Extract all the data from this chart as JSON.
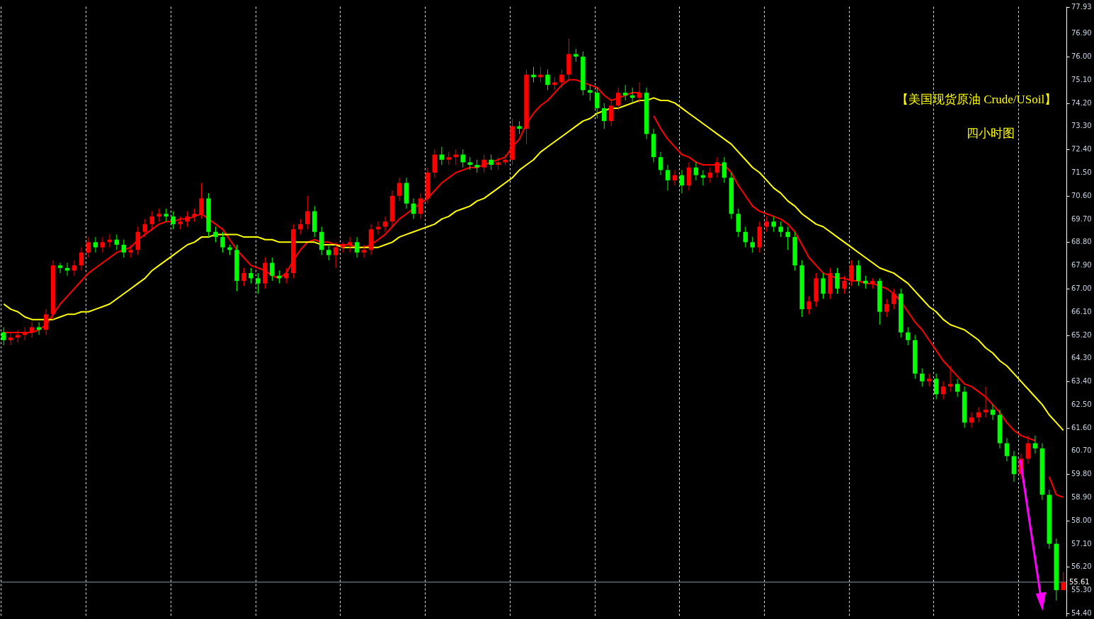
{
  "chart_data": {
    "type": "candlestick",
    "title": "【美国现货原油 Crude/USoil】",
    "subtitle": "四小时图",
    "categories": [
      null,
      null,
      null,
      null,
      null,
      null,
      null,
      null,
      null,
      null,
      null,
      null,
      null,
      null,
      null,
      null,
      null,
      null,
      null,
      null,
      null,
      null,
      null,
      null,
      null,
      null,
      null,
      null,
      null,
      null,
      null,
      null,
      null,
      null,
      null,
      null,
      null,
      null,
      null,
      null,
      null,
      null,
      null,
      null,
      null,
      null,
      null,
      null,
      null,
      null,
      null,
      null,
      null,
      null,
      null,
      null,
      null,
      null,
      null,
      null,
      null,
      null,
      null,
      null,
      null,
      null,
      null,
      null,
      null,
      null,
      null,
      null,
      null,
      null,
      null,
      null,
      null,
      null,
      null,
      null,
      null,
      null,
      null,
      null,
      null,
      null,
      null,
      null,
      null,
      null,
      null,
      null,
      null,
      null,
      null,
      null,
      null,
      null,
      null,
      null,
      null,
      null,
      null,
      null,
      null,
      null,
      null,
      null,
      null,
      null,
      null,
      null,
      null,
      null,
      null,
      null,
      null,
      null,
      null,
      null,
      null,
      null,
      null,
      null,
      null,
      null,
      null,
      null,
      null,
      null,
      null,
      null,
      null,
      null,
      null,
      null,
      null,
      null,
      null,
      null,
      null,
      null,
      null,
      null,
      null,
      null,
      null,
      null,
      null,
      null,
      null
    ],
    "ohlc": [
      [
        65.3,
        65.5,
        64.8,
        65.0
      ],
      [
        65.0,
        65.3,
        64.8,
        65.1
      ],
      [
        65.1,
        65.4,
        64.9,
        65.2
      ],
      [
        65.2,
        65.5,
        65.0,
        65.3
      ],
      [
        65.3,
        65.7,
        65.1,
        65.5
      ],
      [
        65.5,
        65.7,
        65.2,
        65.4
      ],
      [
        65.4,
        66.2,
        65.2,
        66.0
      ],
      [
        66.0,
        68.1,
        65.8,
        67.9
      ],
      [
        67.9,
        68.0,
        67.6,
        67.8
      ],
      [
        67.8,
        68.0,
        67.5,
        67.7
      ],
      [
        67.7,
        68.1,
        67.5,
        67.9
      ],
      [
        67.9,
        68.6,
        67.7,
        68.4
      ],
      [
        68.4,
        69.0,
        68.2,
        68.8
      ],
      [
        68.8,
        69.0,
        68.4,
        68.6
      ],
      [
        68.6,
        69.0,
        68.4,
        68.8
      ],
      [
        68.8,
        69.1,
        68.6,
        68.9
      ],
      [
        68.9,
        69.1,
        68.5,
        68.7
      ],
      [
        68.7,
        68.9,
        68.2,
        68.4
      ],
      [
        68.4,
        68.7,
        68.2,
        68.5
      ],
      [
        68.5,
        69.4,
        68.3,
        69.2
      ],
      [
        69.2,
        69.7,
        69.0,
        69.5
      ],
      [
        69.5,
        70.0,
        69.3,
        69.8
      ],
      [
        69.8,
        70.1,
        69.6,
        69.9
      ],
      [
        69.9,
        70.1,
        69.6,
        69.8
      ],
      [
        69.8,
        70.0,
        69.3,
        69.5
      ],
      [
        69.5,
        69.8,
        69.3,
        69.6
      ],
      [
        69.6,
        70.0,
        69.4,
        69.8
      ],
      [
        69.8,
        70.1,
        69.6,
        69.9
      ],
      [
        69.9,
        71.1,
        69.7,
        70.5
      ],
      [
        70.5,
        70.7,
        69.0,
        69.2
      ],
      [
        69.2,
        69.4,
        68.8,
        69.0
      ],
      [
        69.0,
        69.2,
        68.4,
        68.6
      ],
      [
        68.6,
        68.7,
        68.3,
        68.5
      ],
      [
        68.5,
        68.7,
        66.9,
        67.3
      ],
      [
        67.3,
        67.8,
        67.1,
        67.6
      ],
      [
        67.6,
        67.8,
        67.2,
        67.4
      ],
      [
        67.4,
        67.6,
        66.8,
        67.2
      ],
      [
        67.2,
        68.2,
        67.0,
        68.0
      ],
      [
        68.0,
        68.2,
        67.3,
        67.5
      ],
      [
        67.5,
        67.7,
        67.2,
        67.4
      ],
      [
        67.4,
        67.8,
        67.2,
        67.6
      ],
      [
        67.6,
        69.5,
        67.4,
        69.3
      ],
      [
        69.3,
        69.7,
        69.1,
        69.5
      ],
      [
        69.5,
        70.6,
        69.3,
        70.0
      ],
      [
        70.0,
        70.2,
        69.0,
        69.2
      ],
      [
        69.2,
        69.4,
        68.3,
        68.5
      ],
      [
        68.5,
        68.7,
        68.1,
        68.3
      ],
      [
        68.3,
        68.8,
        67.8,
        68.6
      ],
      [
        68.6,
        68.8,
        68.4,
        68.7
      ],
      [
        68.7,
        69.0,
        68.4,
        68.8
      ],
      [
        68.8,
        69.0,
        68.2,
        68.4
      ],
      [
        68.4,
        68.7,
        68.2,
        68.5
      ],
      [
        68.5,
        69.5,
        68.3,
        69.3
      ],
      [
        69.3,
        69.6,
        69.1,
        69.4
      ],
      [
        69.4,
        69.8,
        69.2,
        69.6
      ],
      [
        69.6,
        70.8,
        69.4,
        70.6
      ],
      [
        70.6,
        71.3,
        70.4,
        71.1
      ],
      [
        71.1,
        71.3,
        70.1,
        70.3
      ],
      [
        70.3,
        70.5,
        69.7,
        69.9
      ],
      [
        69.9,
        70.7,
        69.7,
        70.5
      ],
      [
        70.5,
        71.7,
        70.3,
        71.5
      ],
      [
        71.5,
        72.4,
        71.3,
        72.2
      ],
      [
        72.2,
        72.5,
        71.8,
        72.0
      ],
      [
        72.0,
        72.3,
        71.8,
        72.1
      ],
      [
        72.1,
        72.4,
        71.8,
        72.2
      ],
      [
        72.2,
        72.4,
        71.7,
        71.9
      ],
      [
        71.9,
        72.1,
        71.6,
        71.8
      ],
      [
        71.8,
        72.0,
        71.5,
        71.7
      ],
      [
        71.7,
        72.2,
        71.5,
        72.0
      ],
      [
        72.0,
        72.2,
        71.6,
        71.8
      ],
      [
        71.8,
        72.1,
        71.6,
        71.9
      ],
      [
        71.9,
        72.2,
        71.8,
        72.0
      ],
      [
        72.0,
        73.6,
        71.8,
        73.3
      ],
      [
        73.3,
        73.5,
        73.0,
        73.2
      ],
      [
        73.2,
        75.5,
        72.6,
        75.3
      ],
      [
        75.3,
        75.6,
        75.0,
        75.2
      ],
      [
        75.2,
        75.6,
        75.0,
        75.3
      ],
      [
        75.3,
        75.5,
        74.7,
        74.9
      ],
      [
        74.9,
        75.2,
        74.7,
        75.0
      ],
      [
        75.0,
        75.5,
        74.8,
        75.3
      ],
      [
        75.3,
        76.7,
        75.1,
        76.1
      ],
      [
        76.1,
        76.3,
        75.8,
        76.0
      ],
      [
        76.0,
        76.2,
        74.5,
        74.7
      ],
      [
        74.7,
        74.9,
        74.3,
        74.6
      ],
      [
        74.6,
        74.8,
        73.6,
        74.0
      ],
      [
        74.0,
        74.2,
        73.2,
        73.5
      ],
      [
        73.5,
        74.3,
        73.3,
        74.1
      ],
      [
        74.1,
        74.8,
        73.9,
        74.6
      ],
      [
        74.6,
        74.9,
        74.3,
        74.5
      ],
      [
        74.5,
        74.8,
        74.2,
        74.4
      ],
      [
        74.4,
        75.0,
        74.2,
        74.6
      ],
      [
        74.6,
        74.8,
        72.8,
        73.0
      ],
      [
        73.0,
        73.2,
        71.9,
        72.1
      ],
      [
        72.1,
        72.3,
        71.4,
        71.6
      ],
      [
        71.6,
        71.8,
        70.8,
        71.2
      ],
      [
        71.2,
        71.6,
        71.0,
        71.4
      ],
      [
        71.4,
        71.6,
        70.7,
        71.0
      ],
      [
        71.0,
        71.9,
        70.8,
        71.7
      ],
      [
        71.7,
        71.9,
        71.2,
        71.4
      ],
      [
        71.4,
        71.6,
        71.0,
        71.3
      ],
      [
        71.3,
        71.7,
        71.1,
        71.5
      ],
      [
        71.5,
        72.1,
        71.3,
        71.9
      ],
      [
        71.9,
        72.1,
        71.1,
        71.3
      ],
      [
        71.3,
        71.5,
        69.7,
        69.9
      ],
      [
        69.9,
        70.1,
        69.0,
        69.2
      ],
      [
        69.2,
        69.4,
        68.6,
        68.8
      ],
      [
        68.8,
        69.0,
        68.4,
        68.6
      ],
      [
        68.6,
        69.6,
        68.4,
        69.4
      ],
      [
        69.4,
        69.8,
        69.2,
        69.6
      ],
      [
        69.6,
        69.8,
        69.2,
        69.4
      ],
      [
        69.4,
        69.6,
        69.0,
        69.2
      ],
      [
        69.2,
        69.4,
        68.5,
        69.0
      ],
      [
        69.0,
        69.2,
        67.7,
        67.9
      ],
      [
        67.9,
        68.1,
        65.9,
        66.2
      ],
      [
        66.2,
        66.7,
        66.0,
        66.5
      ],
      [
        66.5,
        67.6,
        66.3,
        67.4
      ],
      [
        67.4,
        67.6,
        66.6,
        66.8
      ],
      [
        66.8,
        67.8,
        66.6,
        67.6
      ],
      [
        67.6,
        67.8,
        66.8,
        67.0
      ],
      [
        67.0,
        67.5,
        66.8,
        67.3
      ],
      [
        67.3,
        68.1,
        67.1,
        67.9
      ],
      [
        67.9,
        68.1,
        67.1,
        67.3
      ],
      [
        67.3,
        67.5,
        67.0,
        67.2
      ],
      [
        67.2,
        67.4,
        67.0,
        67.3
      ],
      [
        67.3,
        67.4,
        65.6,
        66.1
      ],
      [
        66.1,
        66.6,
        65.9,
        66.4
      ],
      [
        66.4,
        67.0,
        66.2,
        66.8
      ],
      [
        66.8,
        67.0,
        65.1,
        65.3
      ],
      [
        65.3,
        65.5,
        64.8,
        65.0
      ],
      [
        65.0,
        65.2,
        63.5,
        63.7
      ],
      [
        63.7,
        63.9,
        63.2,
        63.4
      ],
      [
        63.4,
        63.7,
        63.2,
        63.5
      ],
      [
        63.5,
        63.7,
        62.7,
        62.9
      ],
      [
        62.9,
        63.4,
        62.7,
        63.2
      ],
      [
        63.2,
        64.0,
        63.0,
        63.3
      ],
      [
        63.3,
        63.5,
        62.8,
        63.0
      ],
      [
        63.0,
        63.2,
        61.6,
        61.8
      ],
      [
        61.8,
        62.2,
        61.6,
        62.0
      ],
      [
        62.0,
        62.4,
        61.8,
        62.2
      ],
      [
        62.2,
        63.2,
        62.0,
        62.3
      ],
      [
        62.3,
        62.5,
        61.9,
        62.1
      ],
      [
        62.1,
        62.3,
        60.8,
        61.0
      ],
      [
        61.0,
        61.2,
        60.3,
        60.5
      ],
      [
        60.5,
        60.7,
        59.5,
        59.8
      ],
      [
        59.8,
        60.6,
        59.6,
        60.4
      ],
      [
        60.4,
        61.3,
        60.2,
        61.0
      ],
      [
        61.0,
        61.3,
        60.6,
        60.8
      ],
      [
        60.8,
        61.0,
        58.8,
        59.0
      ],
      [
        59.0,
        59.2,
        56.9,
        57.1
      ],
      [
        57.1,
        57.3,
        54.9,
        55.3
      ],
      [
        55.3,
        56.0,
        55.3,
        55.6
      ]
    ],
    "colors": [
      "#00ff00",
      "#ff0000",
      "#ff0000",
      "#ff0000",
      "#ff0000",
      "#00ff00",
      "#ff0000",
      "#ff0000",
      "#00ff00",
      "#00ff00",
      "#ff0000",
      "#ff0000",
      "#ff0000",
      "#00ff00",
      "#ff0000",
      "#ff0000",
      "#00ff00",
      "#00ff00",
      "#ff0000",
      "#ff0000",
      "#ff0000",
      "#ff0000",
      "#ff0000",
      "#00ff00",
      "#00ff00",
      "#ff0000",
      "#ff0000",
      "#ff0000",
      "#ff0000",
      "#00ff00",
      "#00ff00",
      "#00ff00",
      "#00ff00",
      "#00ff00",
      "#ff0000",
      "#00ff00",
      "#00ff00",
      "#ff0000",
      "#00ff00",
      "#00ff00",
      "#ff0000",
      "#ff0000",
      "#ff0000",
      "#ff0000",
      "#00ff00",
      "#00ff00",
      "#00ff00",
      "#ff0000",
      "#ff0000",
      "#ff0000",
      "#00ff00",
      "#ff0000",
      "#ff0000",
      "#ff0000",
      "#ff0000",
      "#ff0000",
      "#ff0000",
      "#00ff00",
      "#00ff00",
      "#ff0000",
      "#ff0000",
      "#ff0000",
      "#00ff00",
      "#ff0000",
      "#ff0000",
      "#00ff00",
      "#00ff00",
      "#00ff00",
      "#ff0000",
      "#00ff00",
      "#ff0000",
      "#ff0000",
      "#ff0000",
      "#00ff00",
      "#ff0000",
      "#00ff00",
      "#ff0000",
      "#00ff00",
      "#ff0000",
      "#ff0000",
      "#ff0000",
      "#00ff00",
      "#00ff00",
      "#00ff00",
      "#00ff00",
      "#00ff00",
      "#ff0000",
      "#ff0000",
      "#00ff00",
      "#00ff00",
      "#ff0000",
      "#00ff00",
      "#00ff00",
      "#00ff00",
      "#00ff00",
      "#ff0000",
      "#00ff00",
      "#ff0000",
      "#00ff00",
      "#00ff00",
      "#ff0000",
      "#ff0000",
      "#00ff00",
      "#00ff00",
      "#00ff00",
      "#00ff00",
      "#00ff00",
      "#ff0000",
      "#ff0000",
      "#00ff00",
      "#00ff00",
      "#00ff00",
      "#00ff00",
      "#00ff00",
      "#ff0000",
      "#ff0000",
      "#00ff00",
      "#ff0000",
      "#00ff00",
      "#ff0000",
      "#ff0000",
      "#00ff00",
      "#00ff00",
      "#ff0000",
      "#00ff00",
      "#ff0000",
      "#ff0000",
      "#00ff00",
      "#00ff00",
      "#00ff00",
      "#00ff00",
      "#ff0000",
      "#00ff00",
      "#ff0000",
      "#ff0000",
      "#00ff00",
      "#00ff00",
      "#ff0000",
      "#ff0000",
      "#ff0000",
      "#00ff00",
      "#00ff00",
      "#00ff00",
      "#00ff00",
      "#ff0000",
      "#ff0000",
      "#00ff00",
      "#00ff00",
      "#00ff00",
      "#00ff00",
      "#ff0000"
    ],
    "series": [
      {
        "type": "line",
        "color": "#ff0000",
        "values": [
          65.3,
          65.3,
          65.3,
          65.3,
          65.3,
          65.4,
          65.6,
          66.0,
          66.4,
          66.7,
          67.0,
          67.3,
          67.6,
          67.8,
          68.0,
          68.2,
          68.4,
          68.5,
          68.6,
          68.9,
          69.1,
          69.3,
          69.5,
          69.6,
          69.6,
          69.7,
          69.7,
          69.8,
          69.9,
          69.7,
          69.5,
          69.3,
          68.9,
          68.5,
          68.2,
          67.9,
          67.8,
          67.7,
          67.5,
          67.4,
          67.6,
          68.1,
          68.5,
          68.8,
          68.9,
          68.8,
          68.8,
          68.7,
          68.7,
          68.7,
          68.6,
          68.6,
          68.7,
          68.9,
          69.1,
          69.4,
          69.7,
          69.9,
          70.1,
          70.3,
          70.5,
          70.8,
          71.1,
          71.3,
          71.5,
          71.6,
          71.7,
          71.7,
          71.8,
          71.9,
          72.0,
          72.1,
          72.5,
          72.8,
          73.4,
          73.8,
          74.1,
          74.3,
          74.6,
          74.9,
          75.1,
          75.1,
          75.0,
          74.9,
          74.8,
          74.5,
          74.3,
          74.4,
          74.5,
          74.6,
          74.6,
          null,
          73.7,
          73.2,
          72.8,
          72.5,
          72.2,
          72.1,
          71.9,
          71.8,
          71.8,
          71.8,
          71.8,
          71.5,
          71.0,
          70.6,
          70.2,
          70.0,
          69.9,
          69.8,
          69.7,
          69.5,
          69.2,
          68.7,
          68.2,
          67.9,
          67.6,
          67.5,
          67.4,
          67.4,
          67.3,
          67.3,
          67.2,
          67.2,
          67.1,
          67.0,
          66.8,
          66.5,
          66.1,
          65.7,
          65.4,
          65.0,
          64.6,
          64.2,
          63.9,
          63.6,
          63.3,
          63.2,
          63.0,
          62.8,
          62.5,
          62.2,
          61.8,
          61.5,
          61.3,
          61.2,
          61.1,
          null,
          59.7,
          59.0,
          58.9
        ]
      },
      {
        "type": "line",
        "color": "#ffff00",
        "values": [
          66.4,
          66.2,
          66.1,
          65.9,
          65.8,
          65.8,
          65.8,
          65.8,
          65.9,
          66.0,
          66.0,
          66.1,
          66.1,
          66.2,
          66.3,
          66.4,
          66.6,
          66.8,
          67.0,
          67.2,
          67.4,
          67.7,
          67.9,
          68.1,
          68.3,
          68.5,
          68.7,
          68.8,
          69.0,
          69.0,
          69.1,
          69.1,
          69.1,
          69.1,
          69.0,
          69.0,
          69.0,
          68.9,
          68.9,
          68.8,
          68.8,
          68.8,
          68.8,
          68.8,
          68.8,
          68.7,
          68.7,
          68.7,
          68.6,
          68.6,
          68.6,
          68.6,
          68.6,
          68.6,
          68.7,
          68.8,
          69.0,
          69.1,
          69.2,
          69.3,
          69.4,
          69.5,
          69.7,
          69.8,
          70.0,
          70.1,
          70.2,
          70.4,
          70.5,
          70.7,
          70.9,
          71.1,
          71.3,
          71.6,
          71.8,
          72.0,
          72.3,
          72.5,
          72.7,
          72.9,
          73.1,
          73.3,
          73.5,
          73.6,
          73.8,
          73.9,
          74.0,
          74.0,
          74.1,
          74.2,
          74.3,
          74.3,
          74.4,
          74.3,
          74.3,
          74.2,
          74.0,
          73.8,
          73.6,
          73.4,
          73.2,
          73.0,
          72.8,
          72.6,
          72.3,
          72.0,
          71.7,
          71.5,
          71.2,
          70.9,
          70.7,
          70.4,
          70.2,
          69.9,
          69.7,
          69.5,
          69.4,
          69.2,
          69.0,
          68.8,
          68.6,
          68.4,
          68.2,
          68.0,
          67.8,
          67.7,
          67.6,
          67.4,
          67.2,
          66.9,
          66.6,
          66.3,
          66.1,
          65.8,
          65.6,
          65.5,
          65.4,
          65.2,
          65.0,
          64.7,
          64.5,
          64.2,
          64.0,
          63.7,
          63.4,
          63.1,
          62.8,
          62.5,
          62.1,
          61.8,
          61.5
        ]
      }
    ],
    "ylim": [
      54.29,
      77.95
    ],
    "yticks": [
      {
        "value": 54.4,
        "label": "54.40"
      },
      {
        "value": 55.3,
        "label": "55.30"
      },
      {
        "value": 56.2,
        "label": "56.20"
      },
      {
        "value": 57.1,
        "label": "57.10"
      },
      {
        "value": 58.0,
        "label": "58.00"
      },
      {
        "value": 58.9,
        "label": "58.90"
      },
      {
        "value": 59.8,
        "label": "59.80"
      },
      {
        "value": 60.7,
        "label": "60.70"
      },
      {
        "value": 61.6,
        "label": "61.60"
      },
      {
        "value": 62.5,
        "label": "62.50"
      },
      {
        "value": 63.4,
        "label": "63.40"
      },
      {
        "value": 64.3,
        "label": "64.30"
      },
      {
        "value": 65.2,
        "label": "65.20"
      },
      {
        "value": 66.1,
        "label": "66.10"
      },
      {
        "value": 67.0,
        "label": "67.00"
      },
      {
        "value": 67.9,
        "label": "67.90"
      },
      {
        "value": 68.8,
        "label": "68.80"
      },
      {
        "value": 69.7,
        "label": "69.70"
      },
      {
        "value": 70.6,
        "label": "70.60"
      },
      {
        "value": 71.5,
        "label": "71.50"
      },
      {
        "value": 72.4,
        "label": "72.40"
      },
      {
        "value": 73.3,
        "label": "73.30"
      },
      {
        "value": 74.2,
        "label": "74.20"
      },
      {
        "value": 75.1,
        "label": "75.10"
      },
      {
        "value": 76.0,
        "label": "76.00"
      },
      {
        "value": 76.9,
        "label": "76.90"
      },
      {
        "value": 77.93,
        "label": "77.93"
      }
    ],
    "ref_lines": [
      {
        "axis": "y",
        "value": 55.61,
        "label": "55.61",
        "color": "#8c9cb4"
      }
    ],
    "grid": "x",
    "tick_labels": "y"
  }
}
